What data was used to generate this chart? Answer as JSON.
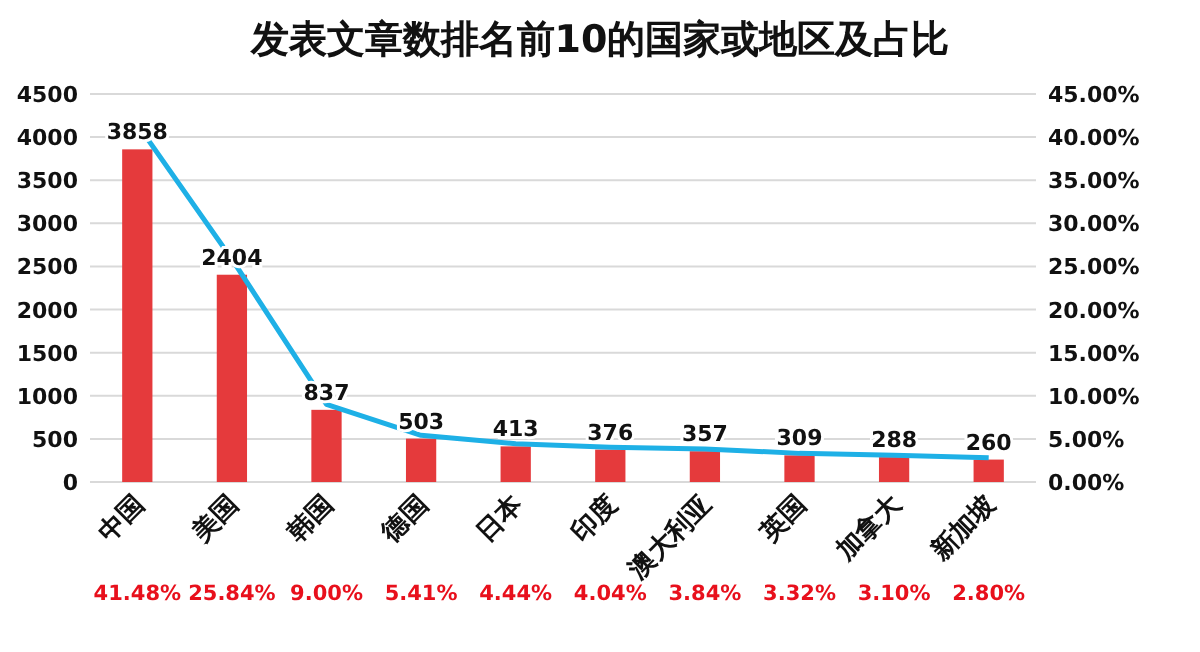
{
  "chart_data": {
    "type": "bar",
    "title": "发表文章数排名前10的国家或地区及占比",
    "categories": [
      "中国",
      "美国",
      "韩国",
      "德国",
      "日本",
      "印度",
      "澳大利亚",
      "英国",
      "加拿大",
      "新加坡"
    ],
    "series": [
      {
        "color": "#e53a3c",
        "values": [
          3858,
          2404,
          837,
          503,
          413,
          376,
          357,
          309,
          288,
          260
        ],
        "value_labels": [
          "3858",
          "2404",
          "837",
          "503",
          "413",
          "376",
          "357",
          "309",
          "288",
          "260"
        ]
      },
      {
        "type": "line",
        "axis": "y2",
        "color": "#1eb0e6",
        "values": [
          41.48,
          25.84,
          9.0,
          5.41,
          4.44,
          4.04,
          3.84,
          3.32,
          3.1,
          2.8
        ],
        "value_labels": [
          "41.48%",
          "25.84%",
          "9.00%",
          "5.41%",
          "4.44%",
          "4.04%",
          "3.84%",
          "3.32%",
          "3.10%",
          "2.80%"
        ]
      }
    ],
    "ylim": [
      0,
      4500
    ],
    "yticks": [
      0,
      500,
      1000,
      1500,
      2000,
      2500,
      3000,
      3500,
      4000,
      4500
    ],
    "y2lim": [
      0,
      45
    ],
    "y2ticks": [
      {
        "value": 0,
        "label": "0.00%"
      },
      {
        "value": 5,
        "label": "5.00%"
      },
      {
        "value": 10,
        "label": "10.00%"
      },
      {
        "value": 15,
        "label": "15.00%"
      },
      {
        "value": 20,
        "label": "20.00%"
      },
      {
        "value": 25,
        "label": "25.00%"
      },
      {
        "value": 30,
        "label": "30.00%"
      },
      {
        "value": 35,
        "label": "35.00%"
      },
      {
        "value": 40,
        "label": "40.00%"
      },
      {
        "value": 45,
        "label": "45.00%"
      }
    ],
    "grid": "y",
    "marker": "none"
  }
}
